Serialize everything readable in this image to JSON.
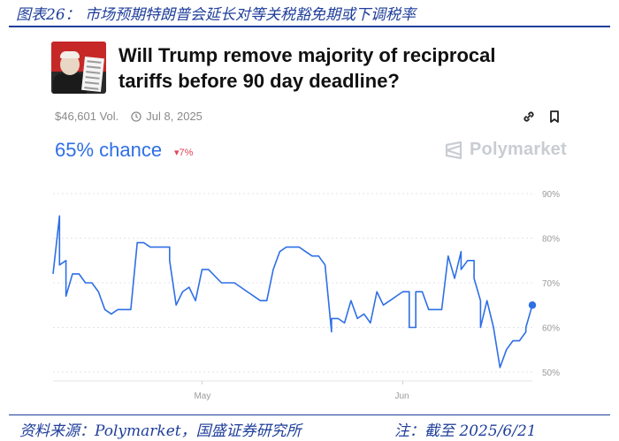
{
  "figure": {
    "caption": "图表26：  市场预期特朗普会延长对等关税豁免期或下调税率",
    "source": "资料来源：Polymarket，国盛证券研究所",
    "note": "注：截至 2025/6/21"
  },
  "card": {
    "title_line1": "Will Trump remove majority of reciprocal",
    "title_line2": "tariffs before 90 day deadline?",
    "volume": "$46,601 Vol.",
    "date": "Jul 8, 2025",
    "chance": "65% chance",
    "delta": "▾7%",
    "brand": "Polymarket",
    "colors": {
      "accent": "#2e6fe6",
      "delta": "#e0435a",
      "brand": "#c9ccd2"
    },
    "icons": [
      "clock-icon",
      "link-icon",
      "bookmark-icon",
      "polymarket-logo-icon"
    ]
  },
  "chart_data": {
    "type": "line",
    "x_tick_labels": [
      "May",
      "Jun"
    ],
    "y_tick_labels": [
      "90%",
      "80%",
      "70%",
      "60%",
      "50%"
    ],
    "ylim": [
      48,
      92
    ],
    "yaxis_side": "right",
    "grid": "horizontal dotted",
    "series": [
      {
        "color": "#2e6fe6",
        "x": [
          "2025-04-08",
          "2025-04-09",
          "2025-04-09",
          "2025-04-10",
          "2025-04-10",
          "2025-04-11",
          "2025-04-11",
          "2025-04-12",
          "2025-04-13",
          "2025-04-14",
          "2025-04-15",
          "2025-04-16",
          "2025-04-17",
          "2025-04-18",
          "2025-04-19",
          "2025-04-20",
          "2025-04-21",
          "2025-04-22",
          "2025-04-23",
          "2025-04-24",
          "2025-04-25",
          "2025-04-26",
          "2025-04-26",
          "2025-04-27",
          "2025-04-28",
          "2025-04-29",
          "2025-04-30",
          "2025-05-01",
          "2025-05-02",
          "2025-05-04",
          "2025-05-06",
          "2025-05-08",
          "2025-05-10",
          "2025-05-11",
          "2025-05-12",
          "2025-05-13",
          "2025-05-14",
          "2025-05-15",
          "2025-05-16",
          "2025-05-17",
          "2025-05-18",
          "2025-05-19",
          "2025-05-20",
          "2025-05-21",
          "2025-05-21",
          "2025-05-22",
          "2025-05-23",
          "2025-05-24",
          "2025-05-25",
          "2025-05-26",
          "2025-05-27",
          "2025-05-28",
          "2025-05-29",
          "2025-05-30",
          "2025-05-31",
          "2025-06-01",
          "2025-06-02",
          "2025-06-02",
          "2025-06-03",
          "2025-06-03",
          "2025-06-04",
          "2025-06-05",
          "2025-06-06",
          "2025-06-07",
          "2025-06-08",
          "2025-06-09",
          "2025-06-10",
          "2025-06-10",
          "2025-06-11",
          "2025-06-12",
          "2025-06-12",
          "2025-06-13",
          "2025-06-13",
          "2025-06-14",
          "2025-06-14",
          "2025-06-15",
          "2025-06-16",
          "2025-06-17",
          "2025-06-18",
          "2025-06-19",
          "2025-06-20",
          "2025-06-20",
          "2025-06-21"
        ],
        "y": [
          72,
          85,
          74,
          75,
          67,
          72,
          72,
          72,
          70,
          70,
          68,
          64,
          63,
          64,
          64,
          64,
          79,
          79,
          78,
          78,
          78,
          78,
          75,
          65,
          68,
          69,
          66,
          73,
          73,
          70,
          70,
          68,
          66,
          66,
          73,
          77,
          78,
          78,
          78,
          77,
          76,
          76,
          74,
          59,
          62,
          62,
          61,
          66,
          62,
          63,
          61,
          68,
          65,
          66,
          67,
          68,
          68,
          60,
          60,
          68,
          68,
          64,
          64,
          64,
          76,
          71,
          77,
          73,
          75,
          75,
          71,
          66,
          60,
          66,
          66,
          60,
          51,
          55,
          57,
          57,
          59,
          60,
          65
        ]
      }
    ]
  }
}
